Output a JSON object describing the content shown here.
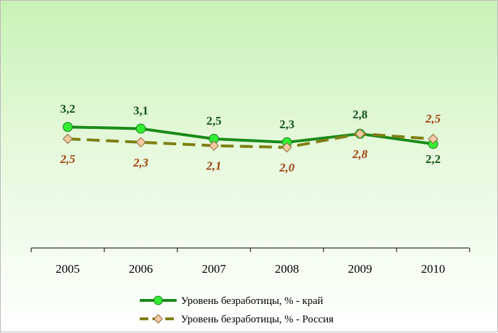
{
  "chart_data": {
    "type": "line",
    "x": [
      "2005",
      "2006",
      "2007",
      "2008",
      "2009",
      "2010"
    ],
    "series": [
      {
        "name": "Уровень безработицы, % - край",
        "values": [
          3.2,
          3.1,
          2.5,
          2.3,
          2.8,
          2.2
        ],
        "data_labels": [
          "3,2",
          "3,1",
          "2,5",
          "2,3",
          "2,8",
          "2,2"
        ],
        "color": "#1a8a1a",
        "marker_color": "#33ee33",
        "style": "solid",
        "marker": "circle"
      },
      {
        "name": "Уровень безработицы, % - Россия",
        "values": [
          2.5,
          2.3,
          2.1,
          2.0,
          2.8,
          2.5
        ],
        "data_labels": [
          "2,5",
          "2,3",
          "2,1",
          "2,0",
          "2,8",
          "2,5"
        ],
        "color": "#7f7f14",
        "marker_color": "#f5c9a3",
        "style": "dashed",
        "marker": "diamond"
      }
    ],
    "title": "",
    "xlabel": "",
    "ylabel": "",
    "ylim": [
      0,
      5
    ],
    "grid": false,
    "legend_position": "bottom"
  }
}
